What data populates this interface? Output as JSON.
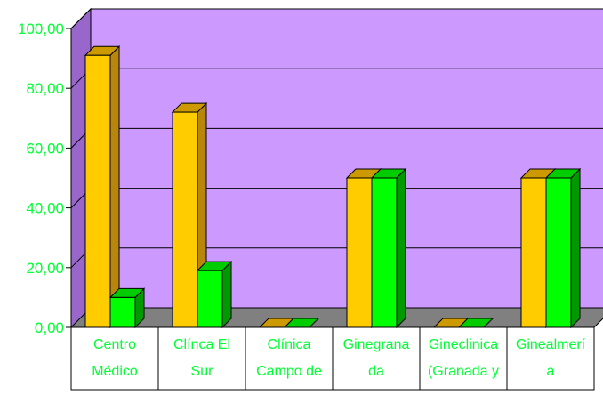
{
  "colors": {
    "plot_back": "#cc99ff",
    "plot_side": "#9966cc",
    "floor": "#808080",
    "gridline": "#000000",
    "bar_front_a": "#ffcc00",
    "bar_side_a": "#b8860b",
    "bar_top_a": "#cc9900",
    "bar_front_b": "#00ff00",
    "bar_side_b": "#009900",
    "bar_top_b": "#00cc00",
    "tick_text": "#00ff33"
  },
  "chart_data": {
    "type": "bar",
    "title": "",
    "xlabel": "",
    "ylabel": "",
    "ylim": [
      0,
      100
    ],
    "yticks": [
      "0,00",
      "20,00",
      "40,00",
      "60,00",
      "80,00",
      "100,00"
    ],
    "categories": [
      [
        "Centro",
        "Médico"
      ],
      [
        "Clínca El",
        "Sur"
      ],
      [
        "Clínica",
        "Campo de"
      ],
      [
        "Ginegrana",
        "da"
      ],
      [
        "Gineclinica",
        "(Granada y"
      ],
      [
        "Ginealmerí",
        "a"
      ]
    ],
    "series": [
      {
        "values": [
          91,
          72,
          0,
          50,
          0,
          50
        ]
      },
      {
        "values": [
          10,
          19,
          0,
          50,
          0,
          50
        ]
      }
    ],
    "grid": true,
    "legend": "none"
  }
}
